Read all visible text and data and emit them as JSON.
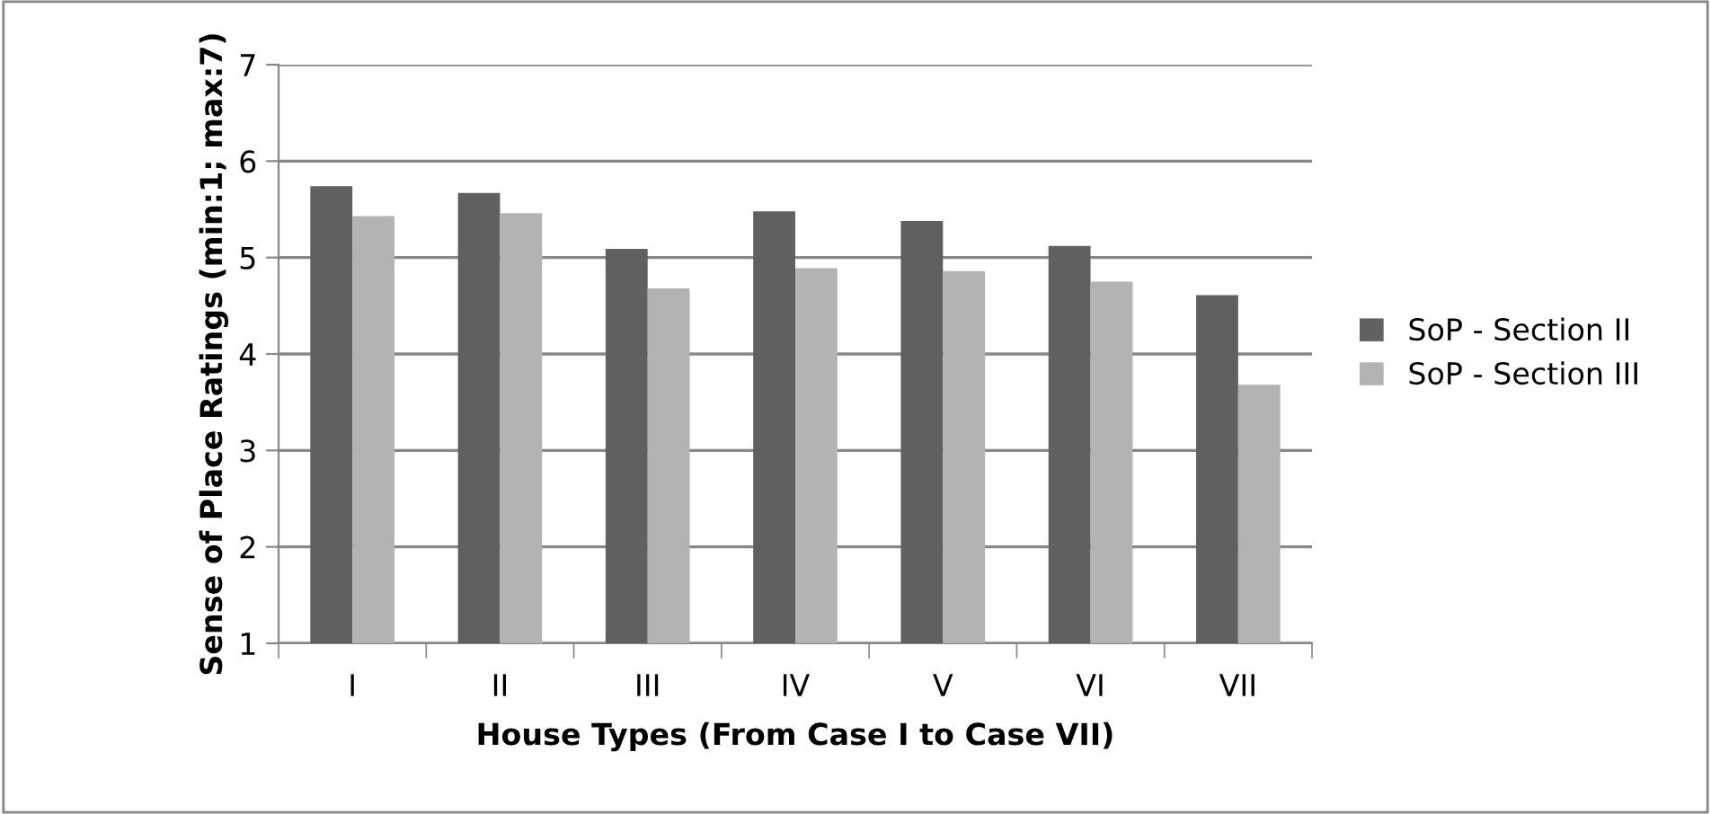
{
  "chart_data": {
    "type": "bar",
    "xlabel": "House Types (From Case I to Case VII)",
    "ylabel": "Sense of Place Ratings (min:1; max:7)",
    "categories": [
      "I",
      "II",
      "III",
      "IV",
      "V",
      "VI",
      "VII"
    ],
    "series": [
      {
        "name": "SoP - Section II",
        "color": "#606060",
        "values": [
          5.74,
          5.67,
          5.09,
          5.48,
          5.38,
          5.12,
          4.61
        ]
      },
      {
        "name": "SoP - Section III",
        "color": "#b3b3b3",
        "values": [
          5.43,
          5.46,
          4.68,
          4.89,
          4.86,
          4.75,
          3.68
        ]
      }
    ],
    "ylim": [
      1,
      7
    ],
    "yticks": [
      1,
      2,
      3,
      4,
      5,
      6,
      7
    ],
    "grid": "y",
    "legend": "right"
  }
}
